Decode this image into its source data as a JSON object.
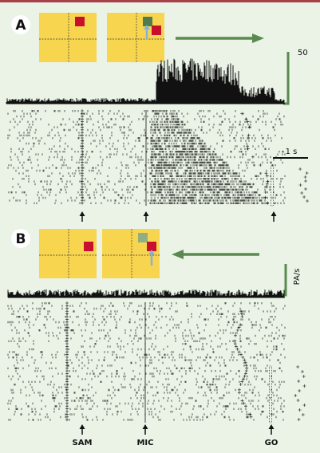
{
  "panels": [
    {
      "label": "A",
      "scale_label": "50",
      "time_scale": "1 s"
    },
    {
      "label": "B",
      "scale_label": "PA/s"
    }
  ],
  "events": [
    "SAM",
    "MIC",
    "GO"
  ]
}
